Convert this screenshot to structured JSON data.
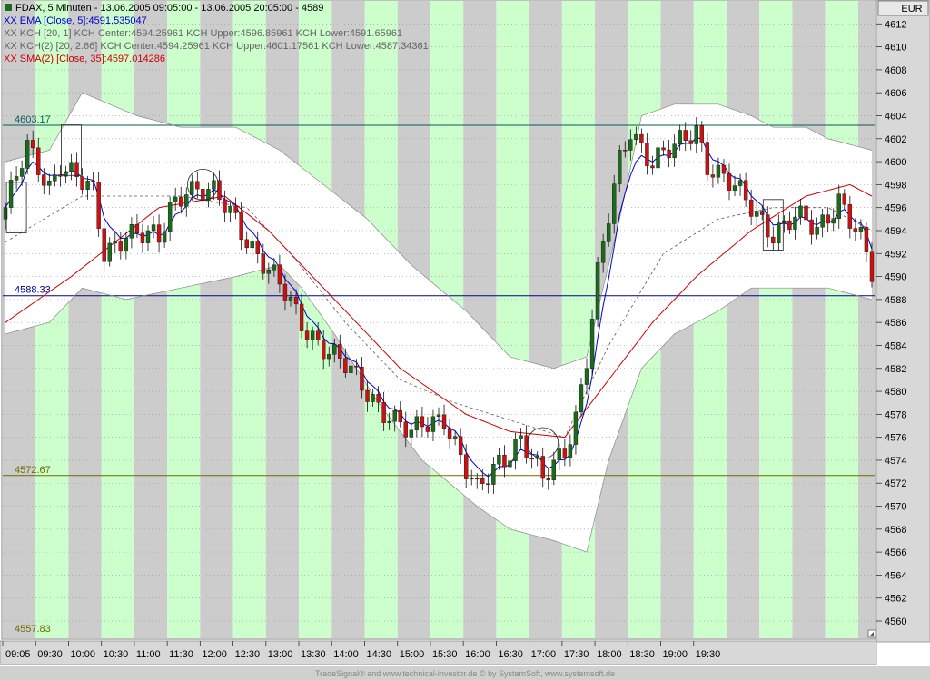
{
  "header": {
    "title": "FDAX, 5 Minuten - 13.06.2005 09:05:00 - 13.06.2005 20:05:00 - 4589",
    "legend": [
      {
        "text": "XX EMA [Close, 5]:4591.535047",
        "color": "#0000cc"
      },
      {
        "text": "XX KCH [20, 1] KCH Center:4594.25961 KCH Upper:4596.85961 KCH Lower:4591.65961",
        "color": "#666666"
      },
      {
        "text": "XX KCH(2) [20, 2.66] KCH Center:4594.25961 KCH Upper:4601.17561 KCH Lower:4587.34361",
        "color": "#666666"
      },
      {
        "text": "XX SMA(2) [Close, 35]:4597.014286",
        "color": "#cc0000"
      }
    ]
  },
  "currency": "EUR",
  "footer": "TradeSignal® and www.technical-investor.de © by SystemSoft, www.systemsoft.de",
  "colors": {
    "up_candle": "#1a6b1a",
    "down_candle": "#cc1111",
    "ema": "#0000cc",
    "sma": "#cc0000",
    "kch_center": "#555555",
    "band_fill": "#ffffff",
    "zone_green": "#ccffcc",
    "zone_gray": "#cccccc",
    "resistance": "#0b5a5a",
    "support": "#00008b",
    "low_line": "#6b6b00"
  },
  "chart_data": {
    "type": "candlestick",
    "y_axis": {
      "min": 4558.5,
      "max": 4614,
      "ticks": [
        4560,
        4562,
        4564,
        4566,
        4568,
        4570,
        4572,
        4574,
        4576,
        4578,
        4580,
        4582,
        4584,
        4586,
        4588,
        4590,
        4592,
        4594,
        4596,
        4598,
        4600,
        4602,
        4604,
        4606,
        4608,
        4610,
        4612
      ]
    },
    "x_axis": {
      "labels": [
        "09:05",
        "09:30",
        "10:00",
        "10:30",
        "11:00",
        "11:30",
        "12:00",
        "12:30",
        "13:00",
        "13:30",
        "14:00",
        "14:30",
        "15:00",
        "15:30",
        "16:00",
        "16:30",
        "17:00",
        "17:30",
        "18:00",
        "18:30",
        "19:00",
        "19:30"
      ]
    },
    "horizontal_lines": [
      {
        "label": "4603.17",
        "value": 4603.17,
        "color": "#0b5a5a"
      },
      {
        "label": "4588.33",
        "value": 4588.33,
        "color": "#00008b"
      },
      {
        "label": "4572.67",
        "value": 4572.67,
        "color": "#6b6b00"
      },
      {
        "label": "4557.83",
        "value": 4557.83,
        "color": "#6b6b00",
        "line": false
      }
    ],
    "close_path": [
      [
        0,
        4596
      ],
      [
        4,
        4601
      ],
      [
        8,
        4598
      ],
      [
        10,
        4600
      ],
      [
        14,
        4598
      ],
      [
        16,
        4597
      ],
      [
        18,
        4592
      ],
      [
        22,
        4594
      ],
      [
        28,
        4593
      ],
      [
        30,
        4596
      ],
      [
        33,
        4598
      ],
      [
        38,
        4597
      ],
      [
        42,
        4595
      ],
      [
        46,
        4592
      ],
      [
        50,
        4589
      ],
      [
        54,
        4586
      ],
      [
        58,
        4584
      ],
      [
        62,
        4582
      ],
      [
        66,
        4580
      ],
      [
        70,
        4578
      ],
      [
        74,
        4576
      ],
      [
        76,
        4577
      ],
      [
        80,
        4578
      ],
      [
        84,
        4573
      ],
      [
        86,
        4571
      ],
      [
        90,
        4574
      ],
      [
        94,
        4576
      ],
      [
        98,
        4572
      ],
      [
        102,
        4575
      ],
      [
        104,
        4578
      ],
      [
        106,
        4583
      ],
      [
        108,
        4590
      ],
      [
        110,
        4595
      ],
      [
        112,
        4600
      ],
      [
        114,
        4603
      ],
      [
        118,
        4600
      ],
      [
        122,
        4601
      ],
      [
        126,
        4603
      ],
      [
        128,
        4600
      ],
      [
        132,
        4598
      ],
      [
        136,
        4596
      ],
      [
        140,
        4594
      ],
      [
        144,
        4595
      ],
      [
        148,
        4594
      ],
      [
        152,
        4597
      ],
      [
        154,
        4595
      ],
      [
        156,
        4593
      ],
      [
        158,
        4590
      ]
    ],
    "sma_path": [
      [
        0,
        4586
      ],
      [
        12,
        4590
      ],
      [
        28,
        4596
      ],
      [
        40,
        4597
      ],
      [
        48,
        4594
      ],
      [
        60,
        4588
      ],
      [
        72,
        4582
      ],
      [
        84,
        4578
      ],
      [
        92,
        4576.5
      ],
      [
        102,
        4576
      ],
      [
        110,
        4581
      ],
      [
        118,
        4586
      ],
      [
        126,
        4590
      ],
      [
        136,
        4594
      ],
      [
        146,
        4597
      ],
      [
        154,
        4598
      ],
      [
        158,
        4597
      ]
    ],
    "kch_center_path": [
      [
        0,
        4593
      ],
      [
        14,
        4597
      ],
      [
        32,
        4597
      ],
      [
        44,
        4596
      ],
      [
        52,
        4592
      ],
      [
        62,
        4586
      ],
      [
        72,
        4581
      ],
      [
        82,
        4579
      ],
      [
        92,
        4577.5
      ],
      [
        102,
        4576
      ],
      [
        110,
        4584
      ],
      [
        120,
        4592
      ],
      [
        130,
        4595
      ],
      [
        140,
        4596
      ],
      [
        150,
        4596
      ],
      [
        158,
        4594
      ]
    ],
    "band_upper_path": [
      [
        0,
        4600
      ],
      [
        8,
        4601
      ],
      [
        14,
        4606
      ],
      [
        24,
        4604
      ],
      [
        32,
        4603
      ],
      [
        42,
        4603
      ],
      [
        50,
        4601
      ],
      [
        58,
        4598
      ],
      [
        66,
        4595
      ],
      [
        74,
        4591
      ],
      [
        84,
        4587
      ],
      [
        92,
        4583
      ],
      [
        100,
        4582
      ],
      [
        106,
        4583
      ],
      [
        112,
        4595
      ],
      [
        116,
        4604
      ],
      [
        122,
        4605
      ],
      [
        130,
        4605
      ],
      [
        136,
        4604
      ],
      [
        140,
        4603
      ],
      [
        146,
        4603
      ],
      [
        150,
        4602
      ],
      [
        158,
        4601
      ]
    ],
    "band_lower_path": [
      [
        0,
        4585
      ],
      [
        8,
        4586
      ],
      [
        14,
        4589
      ],
      [
        22,
        4588
      ],
      [
        32,
        4589
      ],
      [
        42,
        4590
      ],
      [
        50,
        4591
      ],
      [
        54,
        4589
      ],
      [
        60,
        4585
      ],
      [
        68,
        4579
      ],
      [
        76,
        4574
      ],
      [
        86,
        4570
      ],
      [
        92,
        4568
      ],
      [
        100,
        4567
      ],
      [
        106,
        4566
      ],
      [
        110,
        4574
      ],
      [
        116,
        4582
      ],
      [
        122,
        4585
      ],
      [
        130,
        4587
      ],
      [
        136,
        4589
      ],
      [
        144,
        4589
      ],
      [
        150,
        4589
      ],
      [
        158,
        4588
      ]
    ]
  }
}
